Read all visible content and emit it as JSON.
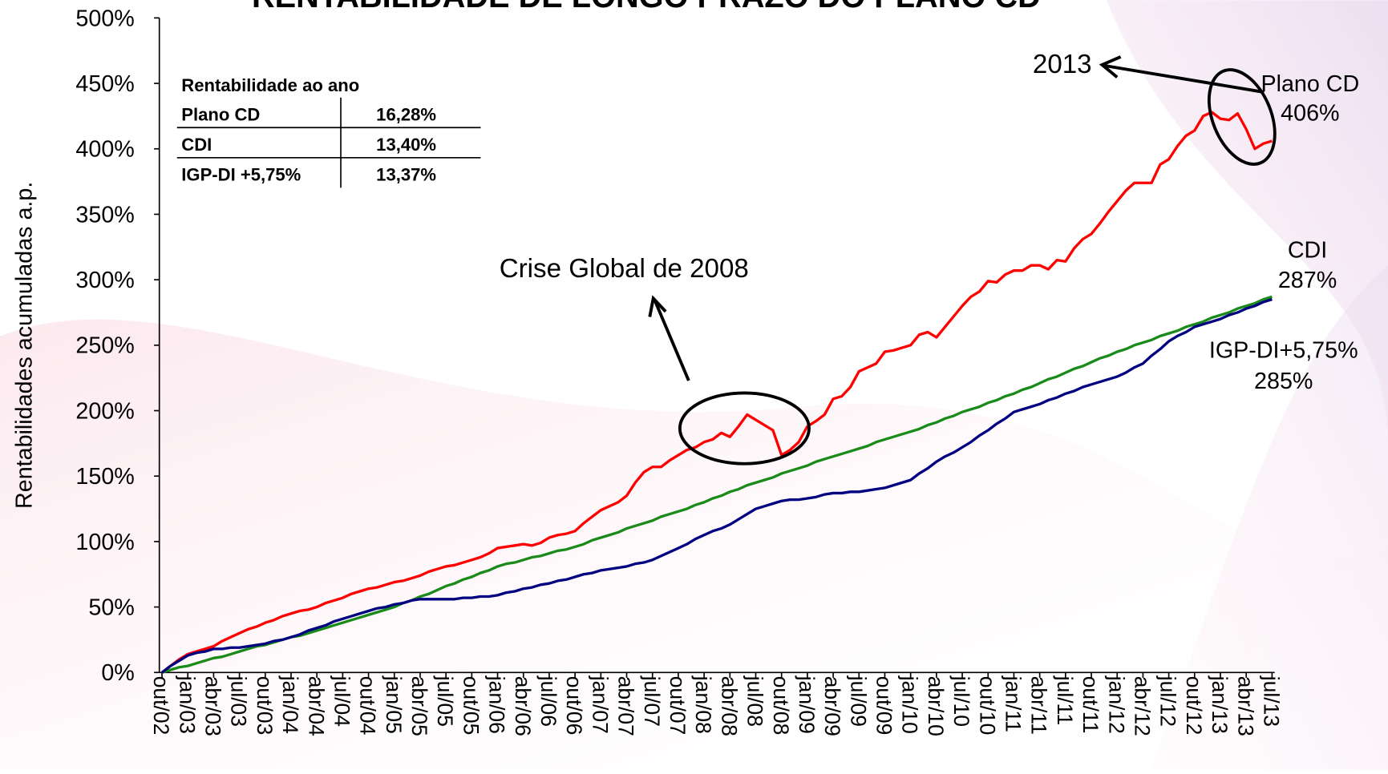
{
  "chart_data": {
    "type": "line",
    "title": "RENTABILIDADE DE LONGO PRAZO DO PLANO CD",
    "y_label": "Rentabilidades acumuladas a.p.",
    "categories": [
      "out/02",
      null,
      null,
      "jan/03",
      null,
      null,
      "abr/03",
      null,
      null,
      "jul/03",
      null,
      null,
      "out/03",
      null,
      null,
      "jan/04",
      null,
      null,
      "abr/04",
      null,
      null,
      "jul/04",
      null,
      null,
      "out/04",
      null,
      null,
      "jan/05",
      null,
      null,
      "abr/05",
      null,
      null,
      "jul/05",
      null,
      null,
      "out/05",
      null,
      null,
      "jan/06",
      null,
      null,
      "abr/06",
      null,
      null,
      "jul/06",
      null,
      null,
      "out/06",
      null,
      null,
      "jan/07",
      null,
      null,
      "abr/07",
      null,
      null,
      "jul/07",
      null,
      null,
      "out/07",
      null,
      null,
      "jan/08",
      null,
      null,
      "abr/08",
      null,
      null,
      "jul/08",
      null,
      null,
      "out/08",
      null,
      null,
      "jan/09",
      null,
      null,
      "abr/09",
      null,
      null,
      "jul/09",
      null,
      null,
      "out/09",
      null,
      null,
      "jan/10",
      null,
      null,
      "abr/10",
      null,
      null,
      "jul/10",
      null,
      null,
      "out/10",
      null,
      null,
      "jan/11",
      null,
      null,
      "abr/11",
      null,
      null,
      "jul/11",
      null,
      null,
      "out/11",
      null,
      null,
      "jan/12",
      null,
      null,
      "abr/12",
      null,
      null,
      "jul/12",
      null,
      null,
      "out/12",
      null,
      null,
      "jan/13",
      null,
      null,
      "abr/13",
      null,
      null,
      "jul/13"
    ],
    "series": [
      {
        "name": "Plano CD",
        "end_label": "406%",
        "color": "#ff0000",
        "values": [
          0,
          5,
          10,
          14,
          16,
          18,
          20,
          24,
          27,
          30,
          33,
          35,
          38,
          40,
          43,
          45,
          47,
          48,
          50,
          53,
          55,
          57,
          60,
          62,
          64,
          65,
          67,
          69,
          70,
          72,
          74,
          77,
          79,
          81,
          82,
          84,
          86,
          88,
          91,
          95,
          96,
          97,
          98,
          97,
          99,
          103,
          105,
          106,
          108,
          114,
          119,
          124,
          127,
          130,
          135,
          145,
          153,
          157,
          157,
          162,
          166,
          170,
          172,
          176,
          178,
          183,
          180,
          188,
          197,
          193,
          189,
          185,
          166,
          170,
          176,
          188,
          192,
          197,
          209,
          211,
          218,
          230,
          233,
          236,
          245,
          246,
          248,
          250,
          258,
          260,
          256,
          264,
          272,
          280,
          287,
          291,
          299,
          298,
          304,
          307,
          307,
          311,
          311,
          308,
          315,
          314,
          324,
          331,
          335,
          343,
          352,
          360,
          368,
          374,
          374,
          374,
          388,
          392,
          402,
          410,
          414,
          425,
          428,
          423,
          422,
          427,
          415,
          400,
          404,
          406
        ]
      },
      {
        "name": "CDI",
        "end_label": "287%",
        "color": "#1a8a1a",
        "values": [
          0,
          2,
          4,
          5,
          7,
          9,
          11,
          12,
          14,
          16,
          18,
          20,
          21,
          23,
          25,
          27,
          28,
          30,
          32,
          34,
          36,
          38,
          40,
          42,
          44,
          46,
          48,
          50,
          53,
          55,
          58,
          60,
          63,
          66,
          68,
          71,
          73,
          76,
          78,
          81,
          83,
          84,
          86,
          88,
          89,
          91,
          93,
          94,
          96,
          98,
          101,
          103,
          105,
          107,
          110,
          112,
          114,
          116,
          119,
          121,
          123,
          125,
          128,
          130,
          133,
          135,
          138,
          140,
          143,
          145,
          147,
          149,
          152,
          154,
          156,
          158,
          161,
          163,
          165,
          167,
          169,
          171,
          173,
          176,
          178,
          180,
          182,
          184,
          186,
          189,
          191,
          194,
          196,
          199,
          201,
          203,
          206,
          208,
          211,
          213,
          216,
          218,
          221,
          224,
          226,
          229,
          232,
          234,
          237,
          240,
          242,
          245,
          247,
          250,
          252,
          254,
          257,
          259,
          261,
          264,
          266,
          268,
          271,
          273,
          275,
          278,
          280,
          282,
          285,
          287
        ]
      },
      {
        "name": "IGP-DI+5,75%",
        "end_label": "285%",
        "color": "#000080",
        "values": [
          0,
          5,
          9,
          13,
          15,
          16,
          18,
          18,
          19,
          19,
          20,
          21,
          22,
          24,
          25,
          27,
          29,
          32,
          34,
          36,
          39,
          41,
          43,
          45,
          47,
          49,
          50,
          52,
          53,
          55,
          56,
          56,
          56,
          56,
          56,
          57,
          57,
          58,
          58,
          59,
          61,
          62,
          64,
          65,
          67,
          68,
          70,
          71,
          73,
          75,
          76,
          78,
          79,
          80,
          81,
          83,
          84,
          86,
          89,
          92,
          95,
          98,
          102,
          105,
          108,
          110,
          113,
          117,
          121,
          125,
          127,
          129,
          131,
          132,
          132,
          133,
          134,
          136,
          137,
          137,
          138,
          138,
          139,
          140,
          141,
          143,
          145,
          147,
          152,
          156,
          161,
          165,
          168,
          172,
          176,
          181,
          185,
          190,
          194,
          199,
          201,
          203,
          205,
          208,
          210,
          213,
          215,
          218,
          220,
          222,
          224,
          226,
          229,
          233,
          236,
          242,
          247,
          253,
          257,
          260,
          264,
          266,
          268,
          270,
          273,
          275,
          278,
          280,
          283,
          285
        ]
      }
    ],
    "ylim": [
      0,
      500
    ],
    "yticks": [
      {
        "value": 0,
        "label": "0%"
      },
      {
        "value": 50,
        "label": "50%"
      },
      {
        "value": 100,
        "label": "100%"
      },
      {
        "value": 150,
        "label": "150%"
      },
      {
        "value": 200,
        "label": "200%"
      },
      {
        "value": 250,
        "label": "250%"
      },
      {
        "value": 300,
        "label": "300%"
      },
      {
        "value": 350,
        "label": "350%"
      },
      {
        "value": 400,
        "label": "400%"
      },
      {
        "value": 450,
        "label": "450%"
      },
      {
        "value": 500,
        "label": "500%"
      }
    ],
    "annotations": [
      "2013",
      "Crise Global de 2008"
    ]
  },
  "table": {
    "title": "Rentabilidade ao ano",
    "rows": [
      [
        "Plano CD",
        "16,28%"
      ],
      [
        "CDI",
        "13,40%"
      ],
      [
        "IGP-DI +5,75%",
        "13,37%"
      ]
    ]
  }
}
